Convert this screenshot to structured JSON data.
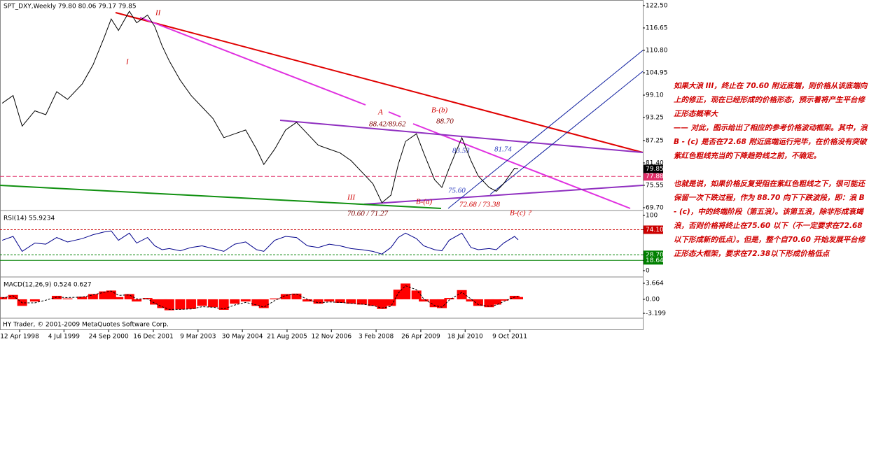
{
  "chart_data": [
    {
      "type": "line",
      "title": "SPT_DXY,Weekly  79.80 80.06 79.17 79.85",
      "color": "#000000",
      "x": [
        1997.8,
        1998.1,
        1998.35,
        1998.7,
        1999.0,
        1999.3,
        1999.6,
        2000.0,
        2000.3,
        2000.6,
        2000.8,
        2001.0,
        2001.3,
        2001.5,
        2001.8,
        2002.0,
        2002.2,
        2002.4,
        2002.7,
        2003.0,
        2003.3,
        2003.6,
        2003.9,
        2004.2,
        2004.5,
        2004.8,
        2005.0,
        2005.3,
        2005.6,
        2005.9,
        2006.2,
        2006.5,
        2006.8,
        2007.1,
        2007.4,
        2007.7,
        2008.0,
        2008.25,
        2008.5,
        2008.7,
        2008.9,
        2009.2,
        2009.4,
        2009.7,
        2009.9,
        2010.1,
        2010.45,
        2010.7,
        2010.9,
        2011.2,
        2011.4,
        2011.6,
        2011.9,
        2012.0
      ],
      "values": [
        97,
        99,
        91,
        95,
        94,
        100,
        98,
        102,
        107,
        114,
        119,
        116,
        121,
        118,
        120,
        117,
        112,
        108,
        103,
        99,
        96,
        93,
        88,
        89,
        90,
        85,
        81,
        85,
        90,
        92,
        89,
        86,
        85,
        84,
        82,
        79,
        76,
        71,
        73,
        81,
        87,
        89,
        84,
        77,
        75,
        80,
        88,
        82,
        78,
        75,
        74,
        76,
        80,
        79.85
      ],
      "xlim": [
        1997.74,
        2015.43
      ],
      "ylim": [
        69.15,
        123.4
      ],
      "yticks": [
        {
          "value": 122.5,
          "label": "122.50"
        },
        116.65,
        {
          "value": 110.8,
          "label": "110.80"
        },
        104.95,
        {
          "value": 99.1,
          "label": "99.10"
        },
        93.25,
        87.25,
        {
          "value": 81.4,
          "label": "81.40"
        },
        75.55,
        {
          "value": 69.7,
          "label": "69.70"
        }
      ],
      "xticks": [
        {
          "value": 1998.28,
          "label": "12 Apr 1998"
        },
        {
          "value": 1999.5,
          "label": "4 Jul 1999"
        },
        {
          "value": 2000.73,
          "label": "24 Sep 2000"
        },
        {
          "value": 2001.96,
          "label": "16 Dec 2001"
        },
        {
          "value": 2003.19,
          "label": "9 Mar 2003"
        },
        {
          "value": 2004.41,
          "label": "30 May 2004"
        },
        {
          "value": 2005.64,
          "label": "21 Aug 2005"
        },
        {
          "value": 2006.86,
          "label": "12 Nov 2006"
        },
        {
          "value": 2008.09,
          "label": "3 Feb 2008"
        },
        {
          "value": 2009.32,
          "label": "26 Apr 2009"
        },
        {
          "value": 2010.54,
          "label": "18 Jul 2010"
        },
        {
          "value": 2011.77,
          "label": "9 Oct 2011"
        }
      ],
      "price_lines": [
        {
          "value": 77.88,
          "color": "#e0306a"
        }
      ]
    },
    {
      "type": "line",
      "title": "RSI(14) 55.9234",
      "color": "#00008b",
      "x": [
        1997.8,
        1998.1,
        1998.35,
        1998.7,
        1999.0,
        1999.3,
        1999.6,
        2000.0,
        2000.3,
        2000.6,
        2000.8,
        2001.0,
        2001.3,
        2001.5,
        2001.8,
        2002.0,
        2002.2,
        2002.4,
        2002.7,
        2003.0,
        2003.3,
        2003.6,
        2003.9,
        2004.2,
        2004.5,
        2004.8,
        2005.0,
        2005.3,
        2005.6,
        2005.9,
        2006.2,
        2006.5,
        2006.8,
        2007.1,
        2007.4,
        2007.7,
        2008.0,
        2008.25,
        2008.5,
        2008.7,
        2008.9,
        2009.2,
        2009.4,
        2009.7,
        2009.9,
        2010.1,
        2010.45,
        2010.7,
        2010.9,
        2011.2,
        2011.4,
        2011.6,
        2011.9,
        2012.0
      ],
      "values": [
        55,
        62,
        35,
        50,
        48,
        60,
        52,
        58,
        65,
        70,
        72,
        55,
        68,
        50,
        60,
        45,
        38,
        40,
        36,
        42,
        45,
        40,
        35,
        48,
        52,
        38,
        35,
        55,
        62,
        60,
        45,
        42,
        48,
        45,
        40,
        38,
        35,
        30,
        42,
        60,
        68,
        58,
        45,
        38,
        36,
        55,
        68,
        42,
        38,
        40,
        38,
        50,
        62,
        55.9234
      ],
      "xlim": [
        1997.74,
        2015.43
      ],
      "ylim": [
        -10.1,
        107.6
      ],
      "yticks": [
        100,
        {
          "value": 74.1,
          "label": "74.10"
        },
        {
          "value": 28.7,
          "label": "28.70"
        },
        18.64,
        0
      ],
      "tick_colors": [
        "#000000",
        "#cc0000",
        "#008000",
        "#008000",
        "#000000"
      ]
    },
    {
      "type": "bar",
      "title": "MACD(12,26,9) 0.524 0.627",
      "x": [
        1997.8,
        1998.1,
        1998.35,
        1998.7,
        1999.0,
        1999.3,
        1999.6,
        2000.0,
        2000.3,
        2000.6,
        2000.8,
        2001.0,
        2001.3,
        2001.5,
        2001.8,
        2002.0,
        2002.2,
        2002.4,
        2002.7,
        2003.0,
        2003.3,
        2003.6,
        2003.9,
        2004.2,
        2004.5,
        2004.8,
        2005.0,
        2005.3,
        2005.6,
        2005.9,
        2006.2,
        2006.5,
        2006.8,
        2007.1,
        2007.4,
        2007.7,
        2008.0,
        2008.25,
        2008.5,
        2008.7,
        2008.9,
        2009.2,
        2009.4,
        2009.7,
        2009.9,
        2010.1,
        2010.45,
        2010.7,
        2010.9,
        2011.2,
        2011.4,
        2011.6,
        2011.9,
        2012.0
      ],
      "series": [
        {
          "color": "#ff0000",
          "values": [
            0.5,
            1,
            -1.5,
            -0.5,
            0,
            0.8,
            0.2,
            0.6,
            1.2,
            1.8,
            2,
            0.5,
            1.2,
            -0.5,
            0.3,
            -1.2,
            -2,
            -2.5,
            -2.3,
            -2.2,
            -1.5,
            -1.8,
            -2.4,
            -1,
            -0.5,
            -1.5,
            -2,
            0.2,
            1.2,
            1.3,
            -0.5,
            -1,
            -0.5,
            -0.8,
            -1,
            -1.2,
            -1.5,
            -2.2,
            -1.5,
            2.2,
            3.6,
            2,
            -0.5,
            -1.8,
            -2,
            0.3,
            2.1,
            -0.5,
            -1.5,
            -1.8,
            -1.2,
            -0.3,
            0.8,
            0.524
          ]
        },
        {
          "color": "#000000",
          "type": "line",
          "dash": true,
          "values": [
            0.3,
            0.8,
            -0.8,
            -0.8,
            -0.2,
            0.5,
            0.4,
            0.5,
            1.0,
            1.6,
            1.9,
            0.9,
            1.0,
            0.1,
            0.1,
            -0.9,
            -1.7,
            -2.3,
            -2.3,
            -2.2,
            -1.7,
            -1.8,
            -2.2,
            -1.3,
            -0.7,
            -1.3,
            -1.8,
            -0.3,
            0.9,
            1.2,
            0,
            -0.8,
            -0.6,
            -0.7,
            -0.9,
            -1.1,
            -1.4,
            -2,
            -1.6,
            1.4,
            3.1,
            2.2,
            0.1,
            -1.4,
            -1.8,
            -0.2,
            1.6,
            0.1,
            -1.2,
            -1.6,
            -1.3,
            -0.5,
            0.5,
            0.627
          ]
        }
      ],
      "xlim": [
        1997.74,
        2015.43
      ],
      "ylim": [
        -3.997,
        4.781
      ],
      "yticks": [
        3.664,
        {
          "value": 0,
          "label": "0.00"
        },
        -3.199
      ]
    }
  ],
  "annotations": [
    "II",
    "I",
    "III",
    "A",
    "B-(b)",
    "88.42/89.62",
    "88.70",
    "83.53",
    "81.74",
    "75.60",
    "B-(a)",
    "72.68 / 73.38",
    "70.60 / 71.27",
    "B-(c)   ?"
  ],
  "footer": "HY Trader, © 2001-2009 MetaQuotes Software Corp.",
  "commentary": [
    "如果大浪 III，终止在 70.60 附近底端，则价格从该底端向上的修正，现在已经形成的价格形态，预示着将产生平台修正形态概率大",
    "—— 对此，图示给出了相应的参考价格波动框架。其中，浪 B - (c) 是否在72.68 附近底端运行完毕，在价格没有突破紫红色粗线充当的下降趋势线之前，不确定。",
    "也就是说，如果价格反复受阻在紫红色粗线之下，很可能还保留一次下跌过程，作为 88.70 向下下跌波段，即：浪 B - (c)，中的终端阶段（第五浪）。该第五浪，除非形成衰竭浪，否则价格将终止在75.60 以下（不一定要求在72.68 以下形成新的低点）。但是，整个自70.60 开始发展平台修正形态大框架，要求在72.38以下形成价格低点"
  ]
}
